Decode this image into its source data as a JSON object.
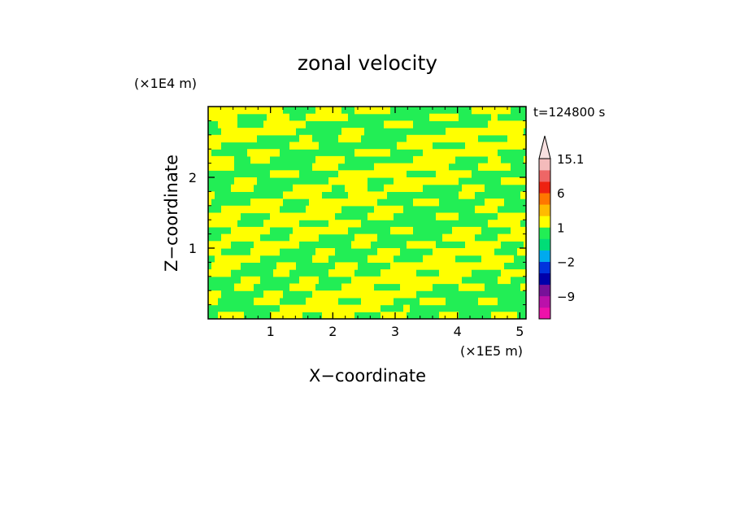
{
  "chart_data": {
    "type": "heatmap",
    "title": "zonal velocity",
    "xlabel": "X−coordinate",
    "ylabel": "Z−coordinate",
    "x_unit": "(×1E5 m)",
    "y_unit": "(×1E4 m)",
    "time_label": "t=124800 s",
    "xlim": [
      0,
      5.1
    ],
    "ylim": [
      0,
      3.0
    ],
    "x_ticks": [
      1,
      2,
      3,
      4,
      5
    ],
    "y_ticks": [
      1,
      2
    ],
    "x_tick_labels": [
      "1",
      "2",
      "3",
      "4",
      "5"
    ],
    "y_tick_labels": [
      "1",
      "2"
    ],
    "field_colors": {
      "low": "#22ee55",
      "high": "#ffff00"
    },
    "colorbar": {
      "levels": [
        -15,
        -12,
        -9,
        -6,
        -4,
        -2,
        -1,
        0,
        1,
        2,
        4,
        6,
        9,
        12,
        15.1
      ],
      "labels": [
        {
          "value": 15.1,
          "text": "15.1"
        },
        {
          "value": 6,
          "text": "6"
        },
        {
          "value": 1,
          "text": "1"
        },
        {
          "value": -2,
          "text": "−2"
        },
        {
          "value": -9,
          "text": "−9"
        }
      ],
      "colors": [
        "#ee11aa",
        "#bb11aa",
        "#771199",
        "#0000aa",
        "#0033dd",
        "#00aaee",
        "#00dd77",
        "#22ee55",
        "#ffff00",
        "#ffbb00",
        "#ff7700",
        "#ee2211",
        "#ee6666",
        "#f4bbbb"
      ],
      "over_color": "#f8e0e0"
    }
  }
}
